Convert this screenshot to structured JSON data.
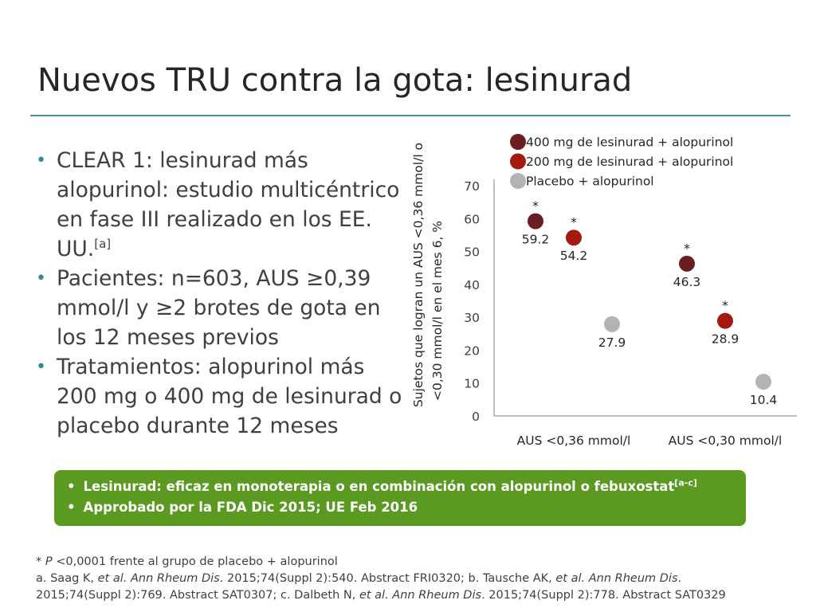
{
  "slide": {
    "title": "Nuevos TRU contra la gota: lesinurad"
  },
  "bullets": [
    {
      "text": "CLEAR 1: lesinurad más alopurinol: estudio multicéntrico en fase III realizado en los EE. UU.",
      "sup": "[a]"
    },
    {
      "text": "Pacientes: n=603, AUS ≥0,39 mmol/l y ≥2 brotes de gota en los 12 meses previos",
      "sup": ""
    },
    {
      "text": "Tratamientos: alopurinol más 200 mg o 400 mg de lesinurad o placebo durante 12 meses",
      "sup": ""
    }
  ],
  "bullet_char": "•",
  "chart_data": {
    "type": "scatter",
    "ylabel_line1": "Sujetos que logran un AUS <0,36 mmol/l o",
    "ylabel_line2": "<0,30 mmol/l en el mes 6, %",
    "ylim": [
      0,
      70
    ],
    "yticks": [
      "0",
      "10",
      "20",
      "30",
      "40",
      "50",
      "60",
      "70"
    ],
    "categories": [
      "AUS <0,36 mmol/l",
      "AUS <0,30 mmol/l"
    ],
    "significance_marker": "*",
    "series": [
      {
        "name": "400 mg de lesinurad + alopurinol",
        "color": "#6b1e22",
        "values": [
          59.2,
          46.3
        ],
        "labels": [
          "59.2",
          "46.3"
        ],
        "significant": [
          true,
          true
        ]
      },
      {
        "name": "200 mg de lesinurad + alopurinol",
        "color": "#a31a10",
        "values": [
          54.2,
          28.9
        ],
        "labels": [
          "54.2",
          "28.9"
        ],
        "significant": [
          true,
          true
        ]
      },
      {
        "name": "Placebo + alopurinol",
        "color": "#b3b3b3",
        "values": [
          27.9,
          10.4
        ],
        "labels": [
          "27.9",
          "10.4"
        ],
        "significant": [
          false,
          false
        ]
      }
    ],
    "legend_position": "top"
  },
  "highlight": {
    "color": "#5a9a21",
    "items": [
      {
        "text": "Lesinurad: eficaz en monoterapia o en combinación con alopurinol o febuxostat",
        "sup": "[a-c]"
      },
      {
        "text": "Approbado por la FDA Dic 2015; UE Feb 2016",
        "sup": ""
      }
    ]
  },
  "footnotes": {
    "line1_prefix": "* ",
    "line1_italic": "P",
    "line1_rest": " <0,0001 frente al grupo de placebo + alopurinol",
    "line2_a": "a. Saag K, ",
    "line2_a_it": "et al. Ann Rheum Dis",
    "line2_b": ". 2015;74(Suppl 2):540. Abstract FRI0320; b. Tausche AK, ",
    "line2_b_it": "et al. Ann Rheum Dis",
    "line2_c": ".",
    "line3_a": "2015;74(Suppl 2):769. Abstract SAT0307; c. Dalbeth N, ",
    "line3_a_it": "et al. Ann Rheum Dis",
    "line3_b": ". 2015;74(Suppl 2):778. Abstract SAT0329"
  }
}
